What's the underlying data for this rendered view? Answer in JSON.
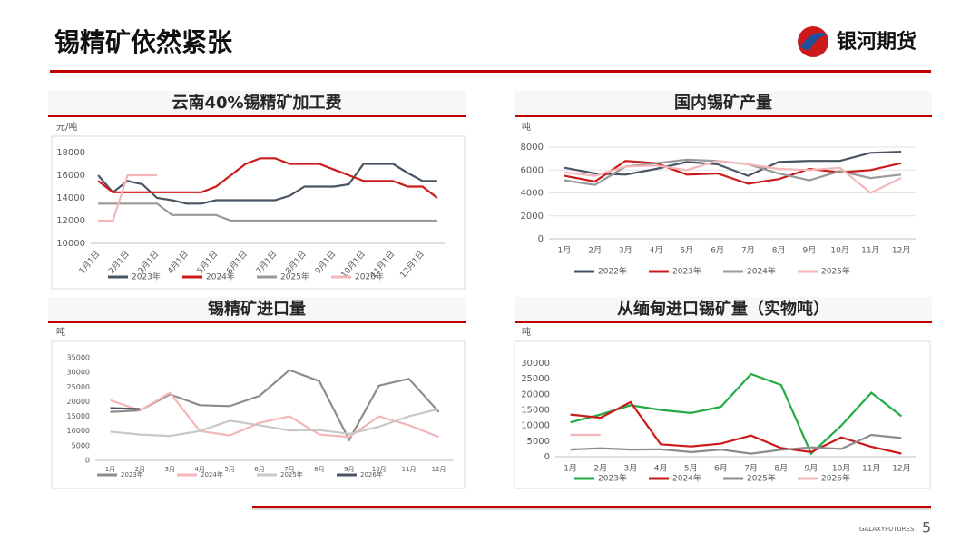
{
  "header": {
    "title": "锡精矿依然紧张"
  },
  "logo": {
    "text": "银河期货"
  },
  "footer": {
    "brand": "GALAXYFUTURES",
    "page": "5"
  },
  "chart_data": [
    {
      "type": "line",
      "title": "云南40%锡精矿加工费",
      "y_label": "元/吨",
      "categories": [
        "1月1日",
        null,
        "2月1日",
        null,
        "3月1日",
        null,
        "4月1日",
        null,
        "5月1日",
        null,
        "6月1日",
        null,
        "7月1日",
        null,
        "8月1日",
        null,
        "9月1日",
        null,
        "10月1日",
        null,
        "11月1日",
        null,
        "12月1日",
        null
      ],
      "ylim": [
        10000,
        18000
      ],
      "yticks": [
        10000,
        12000,
        14000,
        16000,
        18000
      ],
      "grid": false,
      "legend": "bottom",
      "series": [
        {
          "name": "2023年",
          "color": "#4a5563",
          "values": [
            16000,
            14500,
            15500,
            15200,
            14000,
            13800,
            13500,
            13500,
            13800,
            13800,
            13800,
            13800,
            13800,
            14200,
            15000,
            15000,
            15000,
            15200,
            17000,
            17000,
            17000,
            16200,
            15500,
            15500
          ]
        },
        {
          "name": "2024年",
          "color": "#cc1a1a",
          "values": [
            15500,
            14500,
            14500,
            14500,
            14500,
            14500,
            14500,
            14500,
            15000,
            16000,
            17000,
            17500,
            17500,
            17000,
            17000,
            17000,
            16500,
            16000,
            15500,
            15500,
            15500,
            15000,
            15000,
            14000
          ]
        },
        {
          "name": "2025年",
          "color": "#999999",
          "values": [
            13500,
            13500,
            13500,
            13500,
            13500,
            12500,
            12500,
            12500,
            12500,
            12000,
            12000,
            12000,
            12000,
            12000,
            12000,
            12000,
            12000,
            12000,
            12000,
            12000,
            12000,
            12000,
            12000,
            12000
          ]
        },
        {
          "name": "2026年",
          "color": "#f4b6b8",
          "values": [
            12000,
            12000,
            16000,
            16000,
            16000,
            null,
            null,
            null,
            null,
            null,
            null,
            null,
            null,
            null,
            null,
            null,
            null,
            null,
            null,
            null,
            null,
            null,
            null,
            null
          ]
        }
      ]
    },
    {
      "type": "line",
      "title": "国内锡矿产量",
      "y_label": "吨",
      "categories": [
        "1月",
        "2月",
        "3月",
        "4月",
        "5月",
        "6月",
        "7月",
        "8月",
        "9月",
        "10月",
        "11月",
        "12月"
      ],
      "ylim": [
        0,
        8000
      ],
      "yticks": [
        0,
        2000,
        4000,
        6000,
        8000
      ],
      "grid": true,
      "legend": "bottom",
      "series": [
        {
          "name": "2022年",
          "color": "#4a5563",
          "values": [
            6200,
            5700,
            5600,
            6100,
            6700,
            6500,
            5500,
            6700,
            6800,
            6800,
            7500,
            7600
          ]
        },
        {
          "name": "2023年",
          "color": "#cc1a1a",
          "values": [
            5500,
            5000,
            6800,
            6600,
            5600,
            5700,
            4800,
            5200,
            6100,
            5800,
            6000,
            6600
          ]
        },
        {
          "name": "2024年",
          "color": "#999999",
          "values": [
            5100,
            4700,
            6300,
            6600,
            6900,
            6800,
            6500,
            5700,
            5100,
            5900,
            5300,
            5600
          ]
        },
        {
          "name": "2025年",
          "color": "#f4b6b8",
          "values": [
            5800,
            5500,
            6300,
            6400,
            6000,
            6800,
            6500,
            6100,
            6000,
            6200,
            4000,
            5300
          ]
        }
      ]
    },
    {
      "type": "line",
      "title": "锡精矿进口量",
      "y_label": "吨",
      "categories": [
        "1月",
        "2月",
        "3月",
        "4月",
        "5月",
        "6月",
        "7月",
        "8月",
        "9月",
        "10月",
        "11月",
        "12月"
      ],
      "ylim": [
        0,
        35000
      ],
      "yticks": [
        0,
        5000,
        10000,
        15000,
        20000,
        25000,
        30000,
        35000
      ],
      "grid": false,
      "legend": "bottom",
      "series": [
        {
          "name": "2023年",
          "color": "#8c8c8c",
          "values": [
            16500,
            17000,
            22500,
            18800,
            18500,
            22000,
            30800,
            27000,
            7000,
            25500,
            27800,
            16500
          ]
        },
        {
          "name": "2024年",
          "color": "#f4b6b8",
          "values": [
            20500,
            17000,
            23000,
            10000,
            8500,
            12800,
            15000,
            8800,
            8000,
            15000,
            12000,
            8000
          ]
        },
        {
          "name": "2025年",
          "color": "#c8c8c8",
          "values": [
            9800,
            8800,
            8300,
            10000,
            13500,
            12000,
            10200,
            10300,
            9000,
            11500,
            15000,
            17500
          ]
        },
        {
          "name": "2026年",
          "color": "#4a5563",
          "values": [
            17800,
            17500,
            null,
            null,
            null,
            null,
            null,
            null,
            null,
            null,
            null,
            null
          ]
        }
      ]
    },
    {
      "type": "line",
      "title": "从缅甸进口锡矿量（实物吨）",
      "y_label": "吨",
      "categories": [
        "1月",
        "2月",
        "3月",
        "4月",
        "5月",
        "6月",
        "7月",
        "8月",
        "9月",
        "10月",
        "11月",
        "12月"
      ],
      "ylim": [
        0,
        30000
      ],
      "yticks": [
        0,
        5000,
        10000,
        15000,
        20000,
        25000,
        30000
      ],
      "grid": false,
      "legend": "bottom",
      "series": [
        {
          "name": "2023年",
          "color": "#22aa44",
          "values": [
            11000,
            13500,
            16500,
            15000,
            14000,
            16000,
            26500,
            23000,
            1000,
            10000,
            20500,
            13000
          ]
        },
        {
          "name": "2024年",
          "color": "#cc1a1a",
          "values": [
            13500,
            12500,
            17500,
            4000,
            3300,
            4200,
            6800,
            2800,
            1500,
            6200,
            3200,
            1000
          ]
        },
        {
          "name": "2025年",
          "color": "#8c8c8c",
          "values": [
            2300,
            2700,
            2300,
            2400,
            1500,
            2300,
            1000,
            2200,
            3000,
            2500,
            7000,
            6000
          ]
        },
        {
          "name": "2026年",
          "color": "#f4b6b8",
          "values": [
            7000,
            7000,
            null,
            null,
            null,
            null,
            null,
            null,
            null,
            null,
            null,
            null
          ]
        }
      ]
    }
  ]
}
